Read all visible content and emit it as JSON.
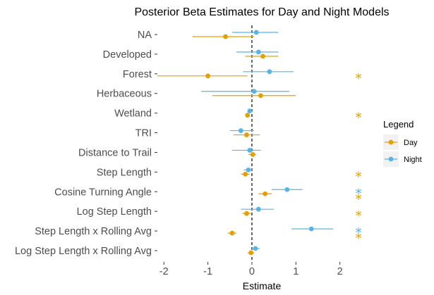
{
  "chart_data": {
    "type": "scatter",
    "title": "Posterior Beta Estimates for Day and Night Models",
    "xlabel": "Estimate",
    "ylabel": "",
    "xlim": [
      -2.1,
      2.55
    ],
    "x_ticks": [
      -2,
      -1,
      0,
      1,
      2
    ],
    "x_tick_labels": [
      "-2",
      "-1",
      "0",
      "1",
      "2"
    ],
    "reference_line": {
      "x": 0,
      "style": "dashed"
    },
    "grid": false,
    "legend": {
      "title": "Legend",
      "position": "right",
      "entries": [
        {
          "label": "Day",
          "color": "#E69F00"
        },
        {
          "label": "Night",
          "color": "#56B4E9"
        }
      ]
    },
    "significance_marker": "*",
    "categories": [
      "NA",
      "Developed",
      "Forest",
      "Herbaceous",
      "Wetland",
      "TRI",
      "Distance to Trail",
      "Step Length",
      "Cosine Turning Angle",
      "Log Step Length",
      "Step Length x Rolling Avg",
      "Log Step Length x Rolling Avg"
    ],
    "series": [
      {
        "name": "Day",
        "color": "#E69F00",
        "estimate": [
          -0.6,
          0.25,
          -1.0,
          0.2,
          -0.1,
          -0.12,
          0.02,
          -0.15,
          0.3,
          -0.12,
          -0.45,
          -0.02
        ],
        "lower": [
          -1.35,
          -0.15,
          -2.15,
          -0.9,
          -0.15,
          -0.42,
          -0.08,
          -0.25,
          0.15,
          -0.22,
          -0.55,
          -0.1
        ],
        "upper": [
          0.05,
          0.6,
          -0.1,
          1.0,
          -0.05,
          0.18,
          0.1,
          -0.05,
          0.45,
          -0.02,
          -0.35,
          0.05
        ],
        "significant": [
          false,
          false,
          true,
          false,
          true,
          false,
          false,
          true,
          true,
          true,
          true,
          false
        ]
      },
      {
        "name": "Night",
        "color": "#56B4E9",
        "estimate": [
          0.1,
          0.15,
          0.4,
          0.05,
          -0.05,
          -0.25,
          -0.05,
          -0.08,
          0.8,
          0.15,
          1.35,
          0.08
        ],
        "lower": [
          -0.45,
          -0.35,
          -0.2,
          -1.15,
          -0.1,
          -0.5,
          -0.45,
          -0.18,
          0.45,
          -0.25,
          0.9,
          0.0
        ],
        "upper": [
          0.6,
          0.6,
          0.95,
          0.85,
          0.0,
          0.05,
          0.2,
          0.02,
          1.15,
          0.5,
          1.85,
          0.18
        ],
        "significant": [
          false,
          false,
          false,
          false,
          false,
          false,
          false,
          false,
          true,
          false,
          true,
          false
        ]
      }
    ]
  }
}
